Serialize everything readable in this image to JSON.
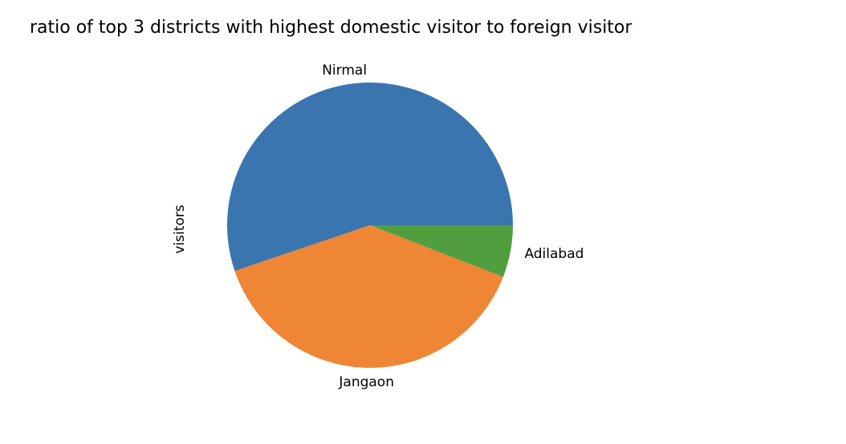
{
  "chart_data": {
    "type": "pie",
    "title": "ratio of top 3 districts with highest domestic visitor to foreign visitor",
    "ylabel": "visitors",
    "categories": [
      "Nirmal",
      "Jangaon",
      "Adilabad"
    ],
    "values": [
      55.2,
      38.9,
      5.9
    ],
    "colors": [
      "#3a75af",
      "#ef8636",
      "#519e3e"
    ],
    "start_angle_deg": 0,
    "direction": "counterclockwise"
  }
}
